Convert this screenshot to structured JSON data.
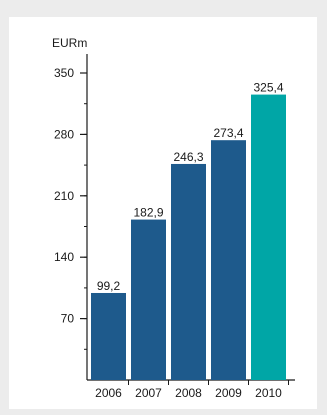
{
  "chart_data": {
    "type": "bar",
    "title": "",
    "xlabel": "",
    "ylabel": "EURm",
    "categories": [
      "2006",
      "2007",
      "2008",
      "2009",
      "2010"
    ],
    "values": [
      99.2,
      182.9,
      246.3,
      273.4,
      325.4
    ],
    "value_labels": [
      "99,2",
      "182,9",
      "246,3",
      "273,4",
      "325,4"
    ],
    "ylim": [
      0,
      350
    ],
    "yticks": [
      70,
      140,
      210,
      280,
      350
    ],
    "ytick_labels": [
      "70",
      "140",
      "210",
      "280",
      "350"
    ],
    "y_minor_step": 35,
    "grid": false,
    "legend": "none",
    "colors": {
      "bar": "#1e5a8c",
      "highlight": "#00a6a6",
      "axis": "#1a1a1a"
    },
    "highlight_index": 4
  }
}
